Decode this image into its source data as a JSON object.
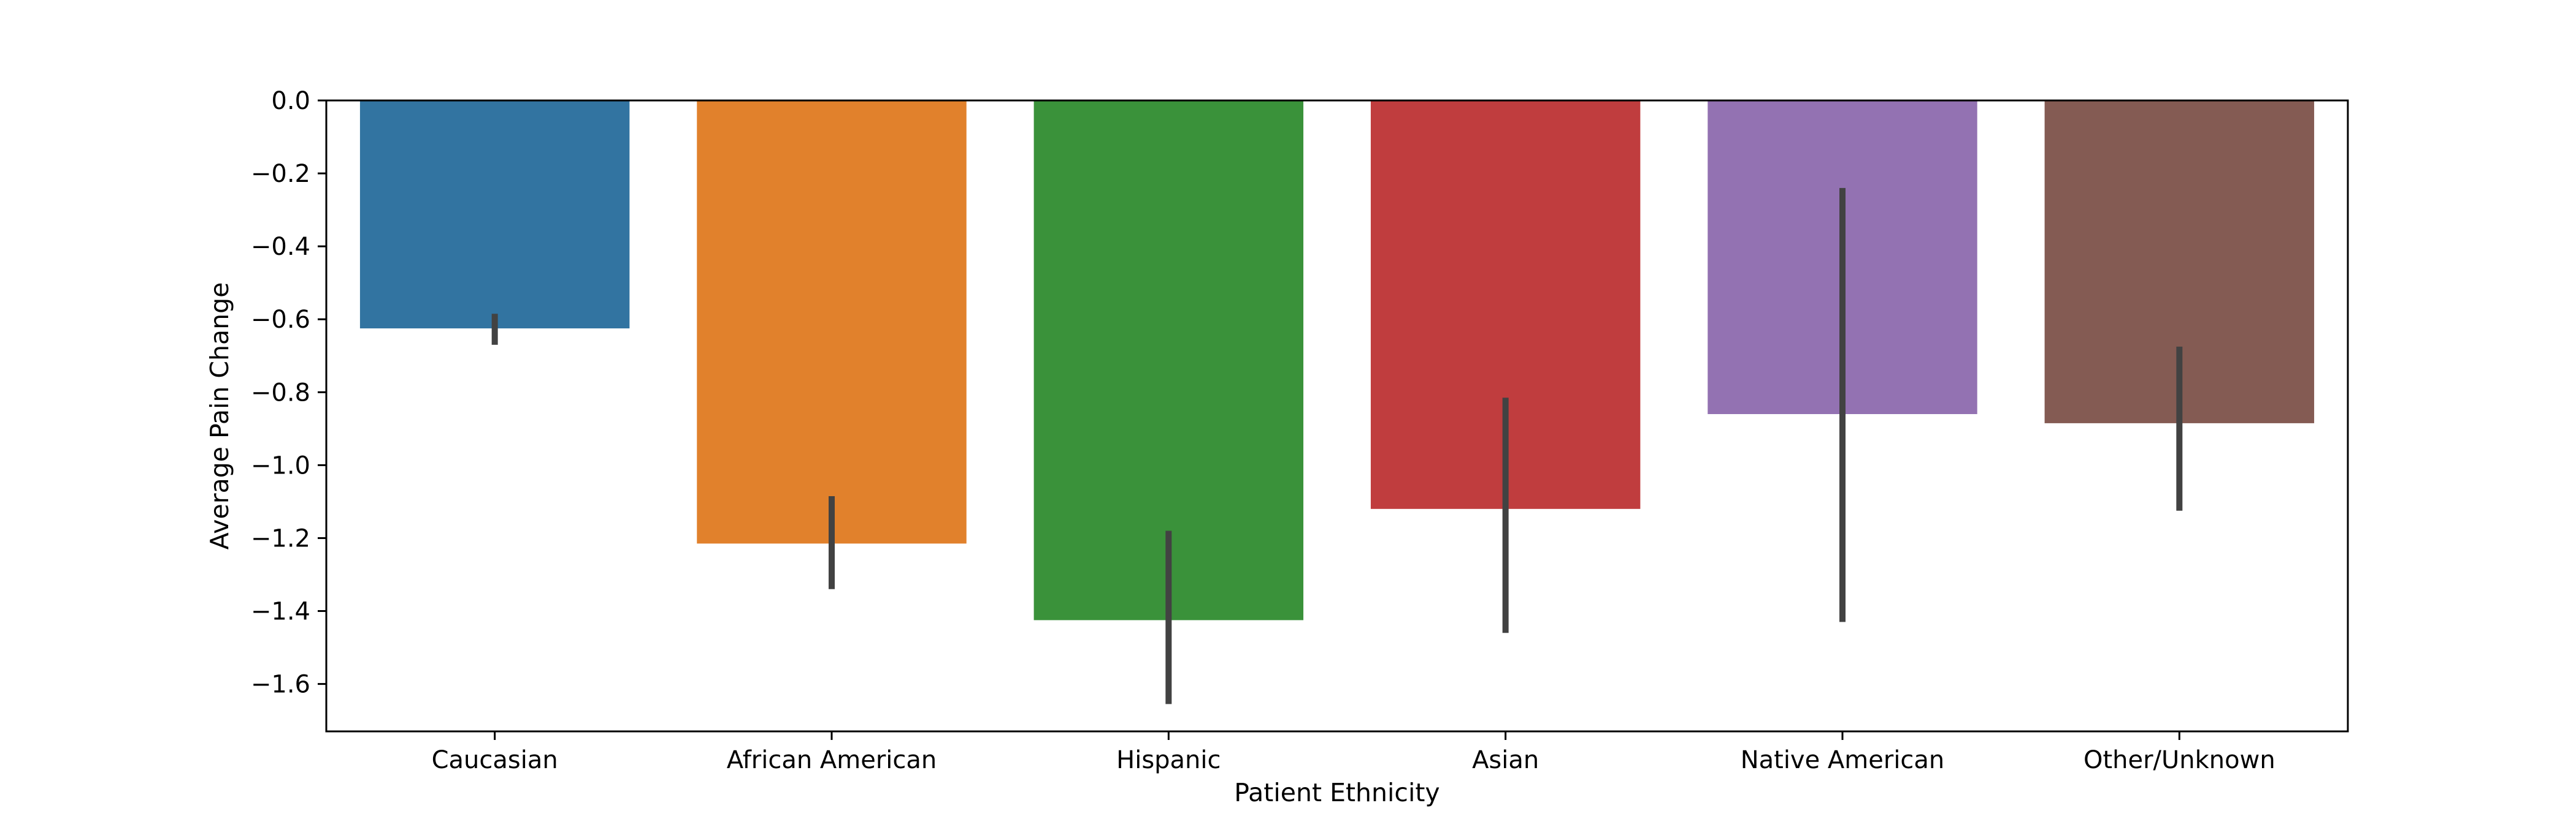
{
  "chart_data": {
    "type": "bar",
    "title": "",
    "xlabel": "Patient Ethnicity",
    "ylabel": "Average Pain Change",
    "ylim": [
      -1.73,
      0.0
    ],
    "yticks": [
      0.0,
      -0.2,
      -0.4,
      -0.6,
      -0.8,
      -1.0,
      -1.2,
      -1.4,
      -1.6
    ],
    "ytick_labels": [
      "0.0",
      "−0.2",
      "−0.4",
      "−0.6",
      "−0.8",
      "−1.0",
      "−1.2",
      "−1.4",
      "−1.6"
    ],
    "categories": [
      "Caucasian",
      "African American",
      "Hispanic",
      "Asian",
      "Native American",
      "Other/Unknown"
    ],
    "values": [
      -0.625,
      -1.215,
      -1.425,
      -1.12,
      -0.86,
      -0.885
    ],
    "error_bars": [
      [
        -0.585,
        -0.67
      ],
      [
        -1.085,
        -1.34
      ],
      [
        -1.18,
        -1.655
      ],
      [
        -0.815,
        -1.46
      ],
      [
        -0.24,
        -1.43
      ],
      [
        -0.675,
        -1.125
      ]
    ],
    "colors": [
      "#3274a1",
      "#e1812c",
      "#3a923a",
      "#c03d3e",
      "#9372b2",
      "#845b53"
    ],
    "errorbar_color": "#424242",
    "grid": false,
    "legend": "none"
  }
}
